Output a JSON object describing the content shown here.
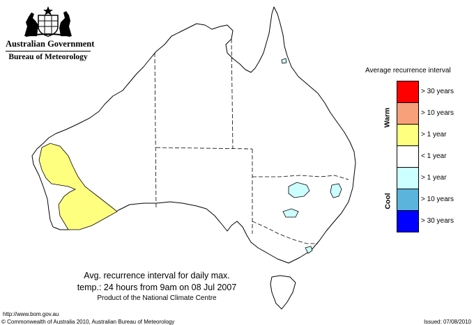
{
  "header": {
    "government": "Australian Government",
    "agency": "Bureau of Meteorology"
  },
  "map": {
    "title_line1": "Avg. recurrence interval for daily max.",
    "title_line2": "temp.: 24 hours from 9am on 08 Jul 2007",
    "title_line3": "Product of the National Climate Centre",
    "land_color": "#ffffff",
    "outline_color": "#000000"
  },
  "legend": {
    "title": "Average recurrence interval",
    "warm_label": "Warm",
    "cool_label": "Cool",
    "items": [
      {
        "label": "> 30 years",
        "color": "#ff0000"
      },
      {
        "label": "> 10 years",
        "color": "#f7a07a"
      },
      {
        "label": "> 1 year",
        "color": "#ffff7f"
      },
      {
        "label": "< 1 year",
        "color": "#ffffff"
      },
      {
        "label": "> 1 year",
        "color": "#ccffff"
      },
      {
        "label": "> 10 years",
        "color": "#5ab4dc"
      },
      {
        "label": "> 30 years",
        "color": "#0000ff"
      }
    ]
  },
  "footer": {
    "url": "http://www.bom.gov.au",
    "copyright": "© Commonwealth of Australia 2010, Australian Bureau of Meteorology",
    "issued": "Issued: 07/08/2010"
  }
}
